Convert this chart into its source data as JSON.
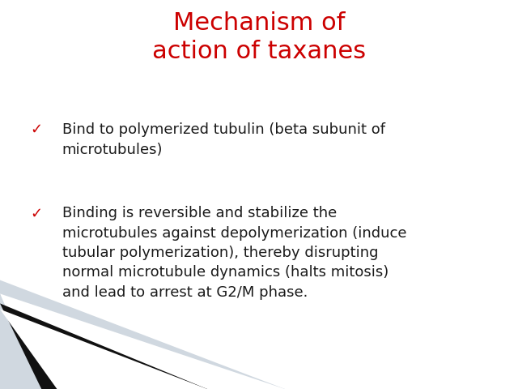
{
  "title_line1": "Mechanism of",
  "title_line2": "action of taxanes",
  "title_color": "#cc0000",
  "title_fontsize": 22,
  "background_color": "#ffffff",
  "bullet_color": "#cc0000",
  "text_color": "#1a1a1a",
  "bullet_char": "✓",
  "bullet_fontsize": 13,
  "text_fontsize": 13,
  "bullets": [
    {
      "text": "Bind to polymerized tubulin (beta subunit of\nmicrotubules)"
    },
    {
      "text": "Binding is reversible and stabilize the\nmicrotubules against depolymerization (induce\ntubular polymerization), thereby disrupting\nnormal microtubule dynamics (halts mitosis)\nand lead to arrest at G2/M phase."
    }
  ],
  "decoration_color_dark": "#111111",
  "decoration_color_light": "#d0d8e0",
  "decoration_color_mid": "#a0b0b8"
}
